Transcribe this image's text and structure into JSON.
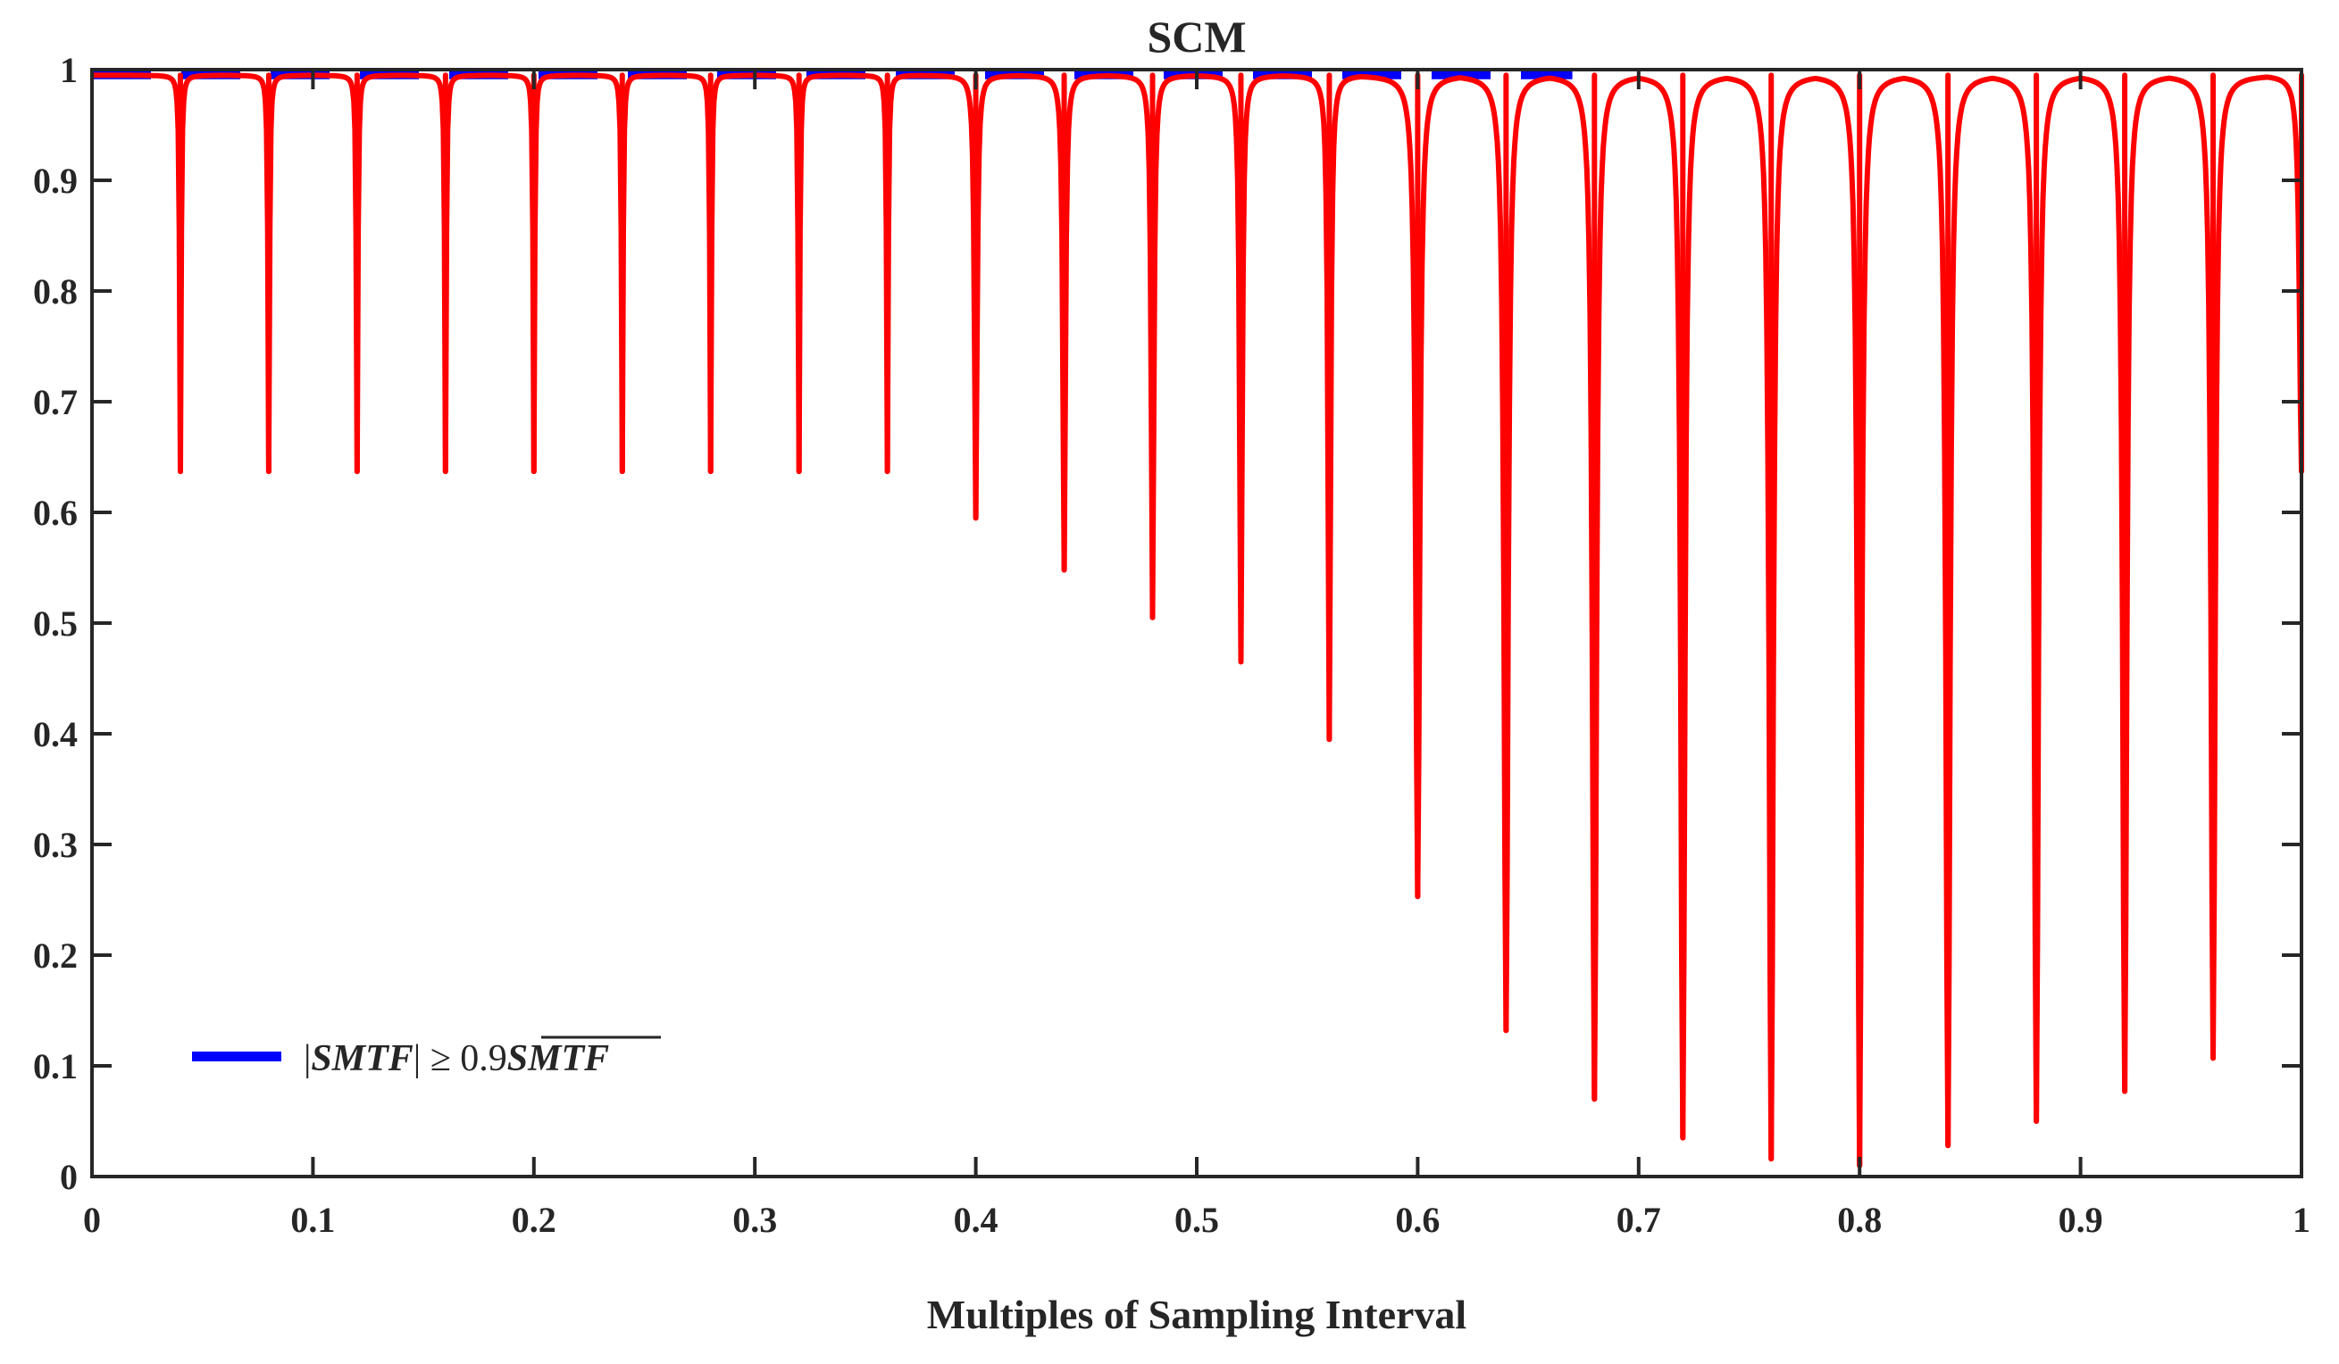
{
  "chart_data": {
    "type": "line",
    "title": "SCM",
    "xlabel": "Multiples of Sampling Interval",
    "ylabel": "",
    "xlim": [
      0,
      1
    ],
    "ylim": [
      0,
      1
    ],
    "xticks": [
      "0",
      "0.1",
      "0.2",
      "0.3",
      "0.4",
      "0.5",
      "0.6",
      "0.7",
      "0.8",
      "0.9",
      "1"
    ],
    "yticks": [
      "0",
      "0.1",
      "0.2",
      "0.3",
      "0.4",
      "0.5",
      "0.6",
      "0.7",
      "0.8",
      "0.9",
      "1"
    ],
    "grid": false,
    "legend": {
      "location": "bottom-left",
      "entries": [
        {
          "series": "threshold",
          "label_parts": [
            "|",
            "SMTF",
            "| ≥ 0.9",
            "SMTF"
          ]
        }
      ]
    },
    "series": [
      {
        "name": "SCM",
        "color": "#ff0000",
        "baseline": 0.995,
        "dips": [
          {
            "x": 0.04,
            "y": 0.637
          },
          {
            "x": 0.08,
            "y": 0.637
          },
          {
            "x": 0.12,
            "y": 0.637
          },
          {
            "x": 0.16,
            "y": 0.637
          },
          {
            "x": 0.2,
            "y": 0.637
          },
          {
            "x": 0.24,
            "y": 0.637
          },
          {
            "x": 0.28,
            "y": 0.637
          },
          {
            "x": 0.32,
            "y": 0.637
          },
          {
            "x": 0.36,
            "y": 0.637
          },
          {
            "x": 0.4,
            "y": 0.595
          },
          {
            "x": 0.44,
            "y": 0.548
          },
          {
            "x": 0.48,
            "y": 0.505
          },
          {
            "x": 0.52,
            "y": 0.465
          },
          {
            "x": 0.56,
            "y": 0.395
          },
          {
            "x": 0.6,
            "y": 0.253
          },
          {
            "x": 0.64,
            "y": 0.132
          },
          {
            "x": 0.68,
            "y": 0.07
          },
          {
            "x": 0.72,
            "y": 0.035
          },
          {
            "x": 0.76,
            "y": 0.016
          },
          {
            "x": 0.8,
            "y": 0.01
          },
          {
            "x": 0.84,
            "y": 0.028
          },
          {
            "x": 0.88,
            "y": 0.05
          },
          {
            "x": 0.92,
            "y": 0.077
          },
          {
            "x": 0.96,
            "y": 0.107
          },
          {
            "x": 1.0,
            "y": 0.637
          }
        ]
      },
      {
        "name": "threshold",
        "color": "#0000ff",
        "y": 0.995,
        "x_range": [
          0,
          0.67
        ],
        "style": "dashed"
      }
    ]
  }
}
